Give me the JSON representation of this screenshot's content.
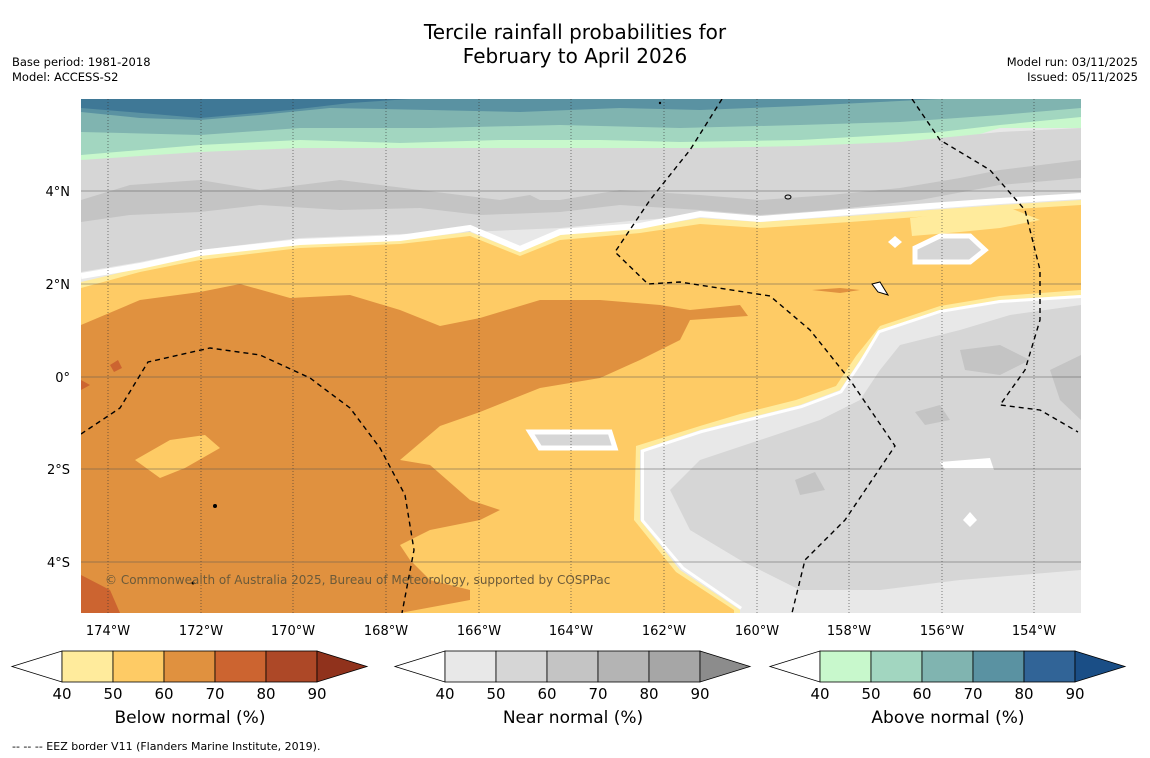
{
  "title": {
    "line1": "Tercile rainfall probabilities for",
    "line2": "February to April 2026"
  },
  "meta": {
    "base_period": "Base period: 1981-2018",
    "model": "Model: ACCESS-S2",
    "model_run": "Model run: 03/11/2025",
    "issued": "Issued: 05/11/2025"
  },
  "copyright": "© Commonwealth of Australia 2025, Bureau of Meteorology, supported by COSPPac",
  "footnote": "--  --  -- EEZ border V11 (Flanders Marine Institute, 2019).",
  "axes": {
    "lon_labels": [
      "174°W",
      "172°W",
      "170°W",
      "168°W",
      "166°W",
      "164°W",
      "162°W",
      "160°W",
      "158°W",
      "156°W",
      "154°W"
    ],
    "lat_labels": [
      "4°N",
      "2°N",
      "0°",
      "2°S",
      "4°S"
    ]
  },
  "colorbars": [
    {
      "label": "Below normal (%)",
      "ticks": [
        "40",
        "50",
        "60",
        "70",
        "80",
        "90"
      ],
      "colors": [
        "#ffffff",
        "#ffeb9c",
        "#fecb65",
        "#e0913f",
        "#cc6430",
        "#ad4827",
        "#90321c"
      ]
    },
    {
      "label": "Near normal (%)",
      "ticks": [
        "40",
        "50",
        "60",
        "70",
        "80",
        "90"
      ],
      "colors": [
        "#ffffff",
        "#e8e8e8",
        "#d6d6d6",
        "#c4c4c4",
        "#b4b4b4",
        "#a6a6a6",
        "#8c8c8c"
      ]
    },
    {
      "label": "Above normal (%)",
      "ticks": [
        "40",
        "50",
        "60",
        "70",
        "80",
        "90"
      ],
      "colors": [
        "#ffffff",
        "#c8f8cc",
        "#a2d6c0",
        "#80b4b0",
        "#5a92a2",
        "#316497",
        "#1a4e86"
      ]
    }
  ]
}
